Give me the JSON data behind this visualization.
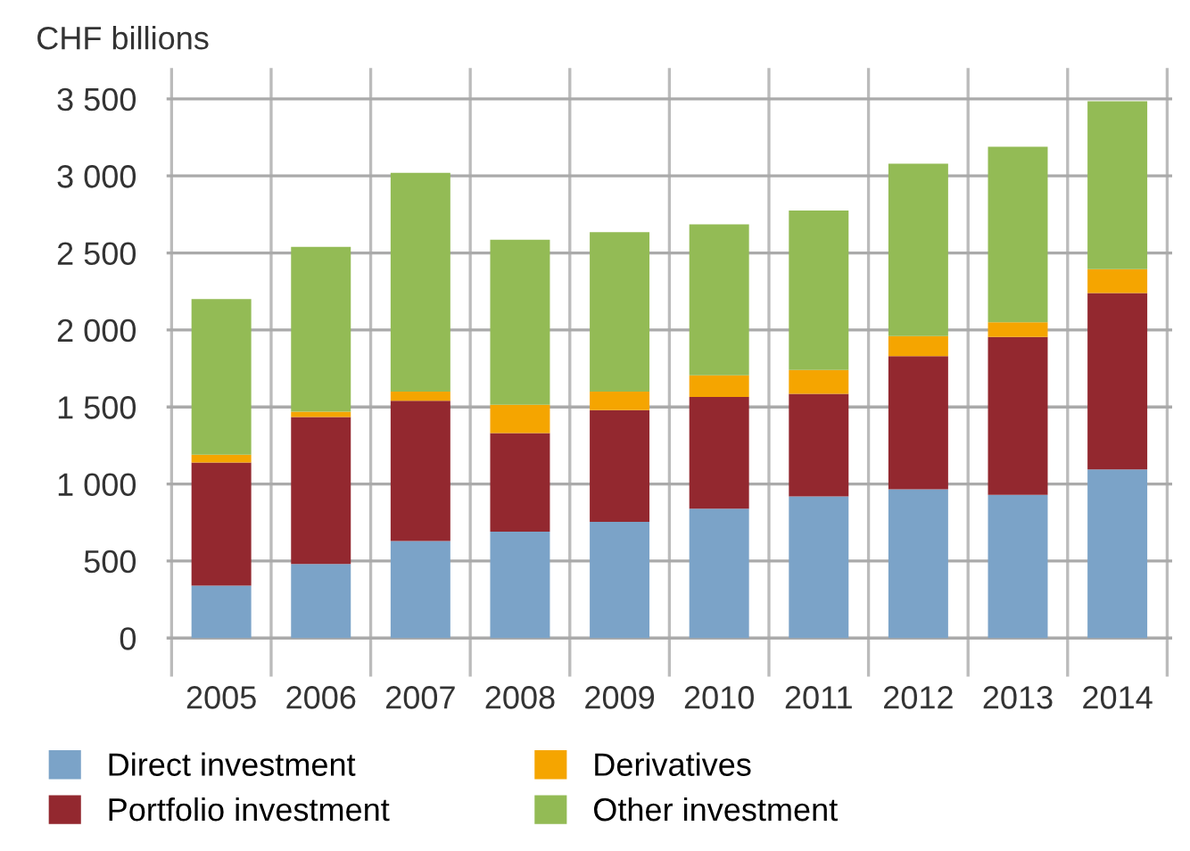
{
  "chart_data": {
    "type": "bar",
    "stacked": true,
    "ylabel": "CHF billions",
    "categories": [
      "2005",
      "2006",
      "2007",
      "2008",
      "2009",
      "2010",
      "2011",
      "2012",
      "2013",
      "2014"
    ],
    "series": [
      {
        "name": "Direct investment",
        "color": "#7ba3c8",
        "values": [
          340,
          480,
          630,
          690,
          755,
          840,
          920,
          965,
          930,
          1095
        ]
      },
      {
        "name": "Portfolio investment",
        "color": "#93282f",
        "values": [
          800,
          955,
          910,
          640,
          725,
          725,
          665,
          865,
          1025,
          1145
        ]
      },
      {
        "name": "Derivatives",
        "color": "#f5a500",
        "values": [
          50,
          35,
          60,
          185,
          120,
          140,
          155,
          130,
          95,
          155
        ]
      },
      {
        "name": "Other investment",
        "color": "#93bb55",
        "values": [
          1010,
          1070,
          1420,
          1070,
          1035,
          980,
          1035,
          1120,
          1140,
          1090
        ]
      }
    ],
    "ylim": [
      -250,
      3700
    ],
    "yticks": [
      {
        "value": 0,
        "label": "0"
      },
      {
        "value": 500,
        "label": "500"
      },
      {
        "value": 1000,
        "label": "1 000"
      },
      {
        "value": 1500,
        "label": "1 500"
      },
      {
        "value": 2000,
        "label": "2 000"
      },
      {
        "value": 2500,
        "label": "2 500"
      },
      {
        "value": 3000,
        "label": "3 000"
      },
      {
        "value": 3500,
        "label": "3 500"
      }
    ],
    "grid": true,
    "legend": "bottom"
  }
}
